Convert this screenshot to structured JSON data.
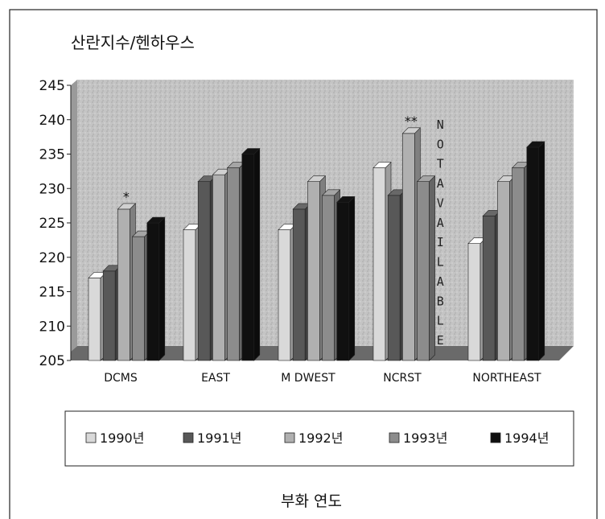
{
  "chart_data": {
    "type": "bar",
    "title": "산란지수/헨하우스",
    "xlabel": "부화 연도",
    "ylabel": "",
    "ylim": [
      205,
      245
    ],
    "yticks": [
      205,
      210,
      215,
      220,
      225,
      230,
      235,
      240,
      245
    ],
    "categories": [
      "DCMS",
      "EAST",
      "M DWEST",
      "NCRST",
      "NORTHEAST"
    ],
    "series": [
      {
        "name": "1990년",
        "values": [
          217,
          224,
          224,
          233,
          222
        ]
      },
      {
        "name": "1991년",
        "values": [
          218,
          231,
          227,
          229,
          226
        ]
      },
      {
        "name": "1992년",
        "values": [
          227,
          232,
          231,
          238,
          231
        ]
      },
      {
        "name": "1993년",
        "values": [
          223,
          233,
          229,
          231,
          233
        ]
      },
      {
        "name": "1994년",
        "values": [
          225,
          235,
          228,
          null,
          236
        ]
      }
    ],
    "annotations": [
      {
        "text": "*",
        "category": "DCMS",
        "series": "1992년"
      },
      {
        "text": "**",
        "category": "NCRST",
        "series": "1992년"
      },
      {
        "text": "NOTAVAILABLE",
        "category": "NCRST",
        "series": "1994년"
      }
    ],
    "colors": {
      "s1990": "#d9d9d9",
      "s1991": "#585858",
      "s1992": "#b0b0b0",
      "s1993": "#8c8c8c",
      "s1994": "#101010",
      "plot_bg": "#c8c8c8",
      "floor": "#6a6a6a"
    },
    "legend": "bottom",
    "grid": false
  }
}
